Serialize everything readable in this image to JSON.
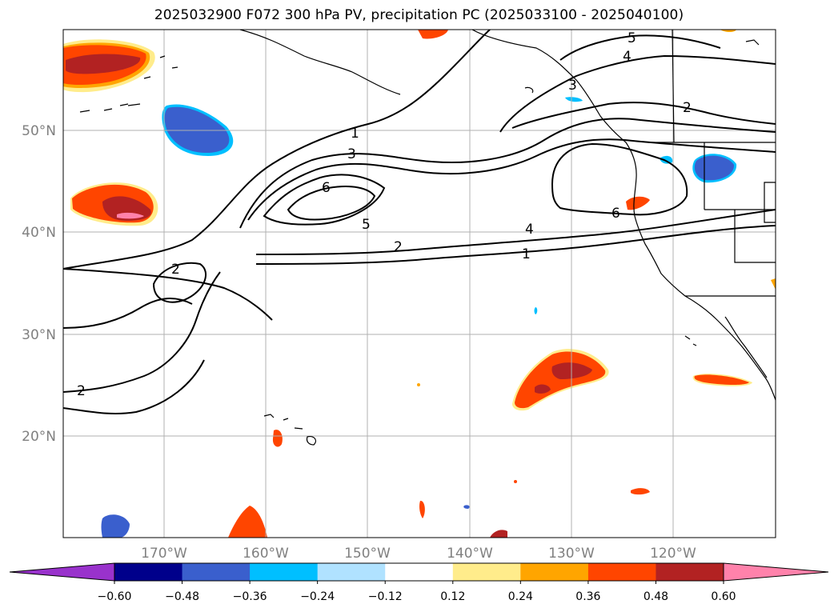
{
  "title": "2025032900 F072 300 hPa PV, precipitation PC (2025033100 - 2025040100)",
  "map": {
    "lat_ticks": [
      "50°N",
      "40°N",
      "30°N",
      "20°N"
    ],
    "lon_ticks": [
      "170°W",
      "160°W",
      "150°W",
      "140°W",
      "130°W",
      "120°W"
    ],
    "gridlines": true
  },
  "contours": {
    "field": "300 hPa PV",
    "labels": [
      "1",
      "3",
      "6",
      "5",
      "2",
      "4",
      "1",
      "6",
      "2",
      "2",
      "5",
      "4",
      "3",
      "2"
    ]
  },
  "colorbar": {
    "orientation": "horizontal",
    "extend": "both",
    "colors": [
      "#9932cc",
      "#00008b",
      "#3a5fcd",
      "#00bfff",
      "#b0e2ff",
      "#ffffff",
      "#ffec8b",
      "#ffa500",
      "#ff4500",
      "#b22222",
      "#ff82ab"
    ],
    "ticks": [
      "−0.60",
      "−0.48",
      "−0.36",
      "−0.24",
      "−0.12",
      "0.12",
      "0.24",
      "0.36",
      "0.48",
      "0.60"
    ]
  }
}
